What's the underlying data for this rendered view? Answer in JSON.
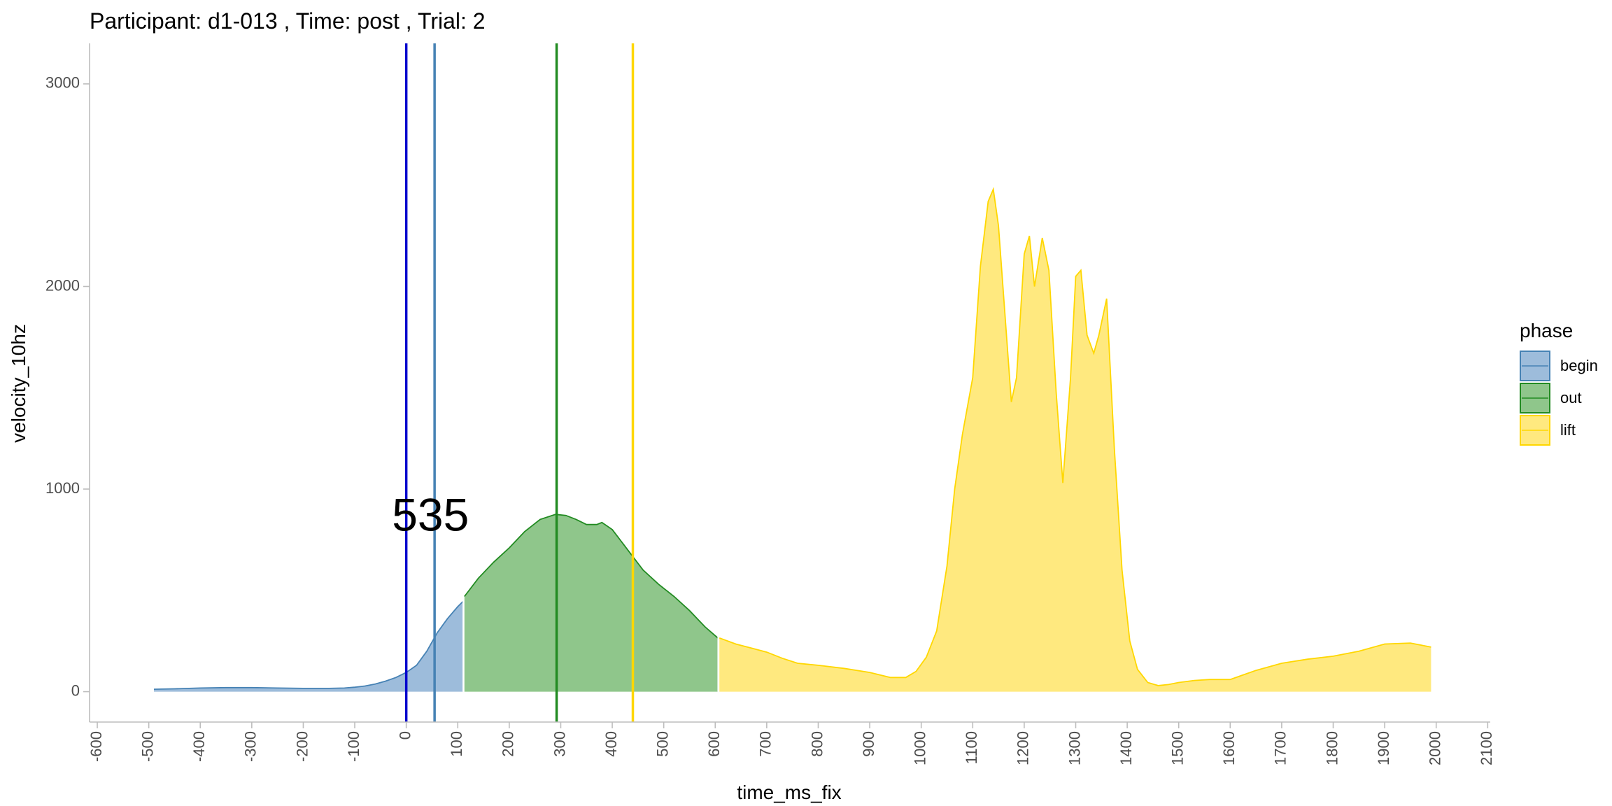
{
  "chart_data": {
    "type": "area",
    "title": "Participant:  d1-013 , Time: post , Trial:  2",
    "xlabel": "time_ms_fix",
    "ylabel": "velocity_10hz",
    "xlim": [
      -615,
      2105
    ],
    "ylim": [
      -150,
      3200
    ],
    "x_ticks": [
      -600,
      -500,
      -400,
      -300,
      -200,
      -100,
      0,
      100,
      200,
      300,
      400,
      500,
      600,
      700,
      800,
      900,
      1000,
      1100,
      1200,
      1300,
      1400,
      1500,
      1600,
      1700,
      1800,
      1900,
      2000,
      2100
    ],
    "y_ticks": [
      0,
      1000,
      2000,
      3000
    ],
    "grid": false,
    "legend": {
      "title": "phase",
      "position": "right",
      "entries": [
        {
          "label": "begin",
          "fill": "#9DBCDB",
          "stroke": "#4682B4"
        },
        {
          "label": "out",
          "fill": "#8FC68B",
          "stroke": "#228B22"
        },
        {
          "label": "lift",
          "fill": "#FFE97F",
          "stroke": "#FFD700"
        }
      ]
    },
    "series": [
      {
        "name": "begin",
        "fill": "#9DBCDB",
        "stroke": "#4682B4",
        "x": [
          -490,
          -450,
          -400,
          -350,
          -300,
          -250,
          -200,
          -150,
          -120,
          -100,
          -80,
          -60,
          -40,
          -20,
          0,
          20,
          40,
          60,
          80,
          100,
          110
        ],
        "y": [
          12,
          14,
          18,
          20,
          20,
          18,
          16,
          16,
          18,
          22,
          28,
          38,
          52,
          70,
          95,
          130,
          200,
          290,
          360,
          420,
          445
        ]
      },
      {
        "name": "out",
        "fill": "#8FC68B",
        "stroke": "#228B22",
        "x": [
          113,
          140,
          170,
          200,
          230,
          260,
          290,
          310,
          330,
          350,
          370,
          380,
          400,
          430,
          460,
          490,
          520,
          550,
          580,
          605
        ],
        "y": [
          470,
          560,
          640,
          710,
          790,
          850,
          875,
          870,
          850,
          825,
          825,
          835,
          800,
          700,
          600,
          530,
          470,
          400,
          320,
          265
        ]
      },
      {
        "name": "lift",
        "fill": "#FFE97F",
        "stroke": "#FFD700",
        "x": [
          608,
          640,
          670,
          700,
          730,
          760,
          800,
          850,
          900,
          940,
          970,
          990,
          1010,
          1030,
          1050,
          1065,
          1080,
          1100,
          1115,
          1130,
          1140,
          1150,
          1165,
          1175,
          1185,
          1200,
          1210,
          1220,
          1235,
          1248,
          1262,
          1275,
          1290,
          1300,
          1310,
          1322,
          1335,
          1345,
          1360,
          1375,
          1390,
          1405,
          1420,
          1440,
          1460,
          1480,
          1500,
          1530,
          1560,
          1600,
          1650,
          1700,
          1750,
          1800,
          1850,
          1900,
          1950,
          1990
        ],
        "y": [
          265,
          235,
          215,
          195,
          165,
          140,
          130,
          115,
          95,
          70,
          70,
          100,
          170,
          300,
          620,
          1000,
          1270,
          1550,
          2100,
          2420,
          2480,
          2300,
          1780,
          1430,
          1550,
          2160,
          2250,
          2000,
          2240,
          2080,
          1480,
          1030,
          1550,
          2050,
          2080,
          1760,
          1670,
          1760,
          1940,
          1200,
          600,
          250,
          110,
          45,
          30,
          35,
          45,
          55,
          60,
          60,
          105,
          140,
          160,
          175,
          200,
          235,
          240,
          220
        ]
      }
    ],
    "vlines": [
      {
        "x": 0,
        "color": "#0000CD"
      },
      {
        "x": 55,
        "color": "#4682B4"
      },
      {
        "x": 292,
        "color": "#228B22"
      },
      {
        "x": 440,
        "color": "#FFD700"
      }
    ],
    "annotations": [
      {
        "text": "535",
        "x": 47,
        "y": 855
      }
    ]
  }
}
